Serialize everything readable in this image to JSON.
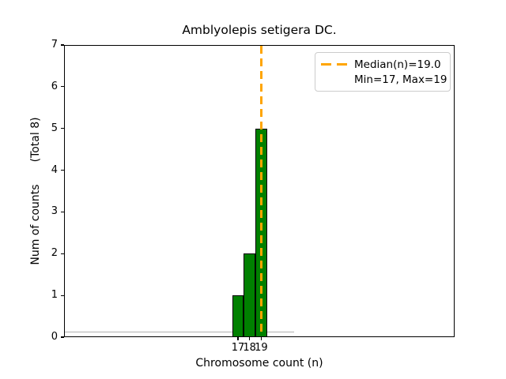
{
  "chart_data": {
    "type": "bar",
    "title": "Amblyolepis setigera DC.",
    "xlabel": "Chromosome count (n)",
    "ylabel_main": "Num of counts",
    "ylabel_note": "(Total 8)",
    "categories": [
      17,
      18,
      19
    ],
    "values": [
      1,
      2,
      5
    ],
    "total_counts": 8,
    "median_n": 19.0,
    "min_n": 17,
    "max_n": 19,
    "ylim": [
      0,
      7
    ],
    "yticks": [
      0,
      1,
      2,
      3,
      4,
      5,
      6,
      7
    ],
    "xticks": [
      17,
      18,
      19
    ],
    "grid": false,
    "legend": {
      "position": "upper right",
      "entries": [
        {
          "label": "Median(n)=19.0",
          "marker": "orange-dashed-line"
        },
        {
          "label": "Min=17, Max=19",
          "marker": "none"
        }
      ]
    },
    "colors": {
      "bar_fill": "#008000",
      "bar_edge": "#000000",
      "median_line": "#FFA500",
      "axis": "#000000",
      "legend_border": "#cccccc",
      "zero_baseline": "#b0b0b0"
    }
  }
}
